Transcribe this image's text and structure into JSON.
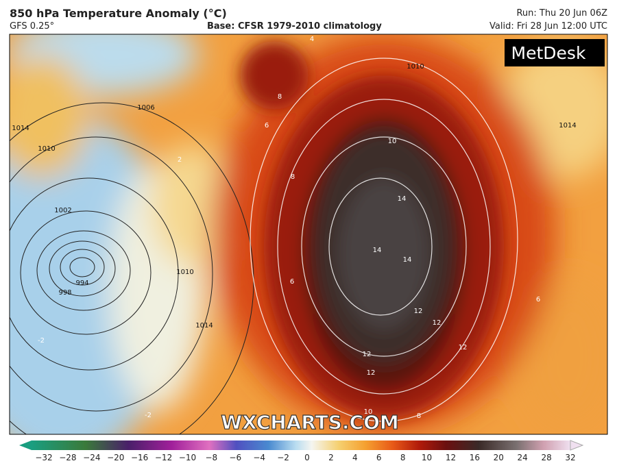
{
  "header": {
    "title": "850 hPa Temperature Anomaly (°C)",
    "model": "GFS 0.25°",
    "base": "Base: CFSR 1979-2010 climatology",
    "run": "Run: Thu 20 Jun 06Z",
    "valid": "Valid: Fri 28 Jun 12:00 UTC"
  },
  "logo": "MetDesk",
  "watermark": "WXCHARTS.COM",
  "isobar_labels": [
    "1014",
    "1010",
    "1006",
    "1002",
    "998",
    "994",
    "1010",
    "1014",
    "1010",
    "1014"
  ],
  "anomaly_labels": [
    "14",
    "14",
    "14",
    "12",
    "12",
    "12",
    "12",
    "12",
    "10",
    "10",
    "8",
    "8",
    "8",
    "6",
    "6",
    "6",
    "4",
    "2",
    "-2",
    "-2"
  ],
  "colorbar": {
    "ticks": [
      "−32",
      "−28",
      "−24",
      "−20",
      "−16",
      "−12",
      "−10",
      "−8",
      "−6",
      "−4",
      "−2",
      "0",
      "2",
      "4",
      "6",
      "8",
      "10",
      "12",
      "16",
      "20",
      "24",
      "28",
      "32"
    ]
  }
}
